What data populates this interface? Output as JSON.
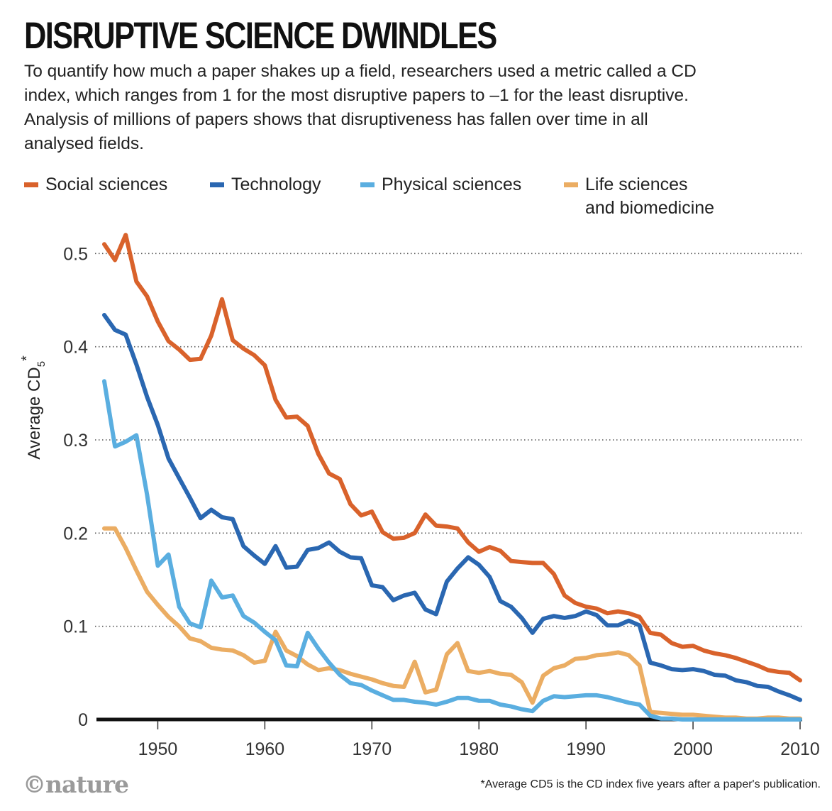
{
  "header": {
    "title": "DISRUPTIVE SCIENCE DWINDLES",
    "subtitle": "To quantify how much a paper shakes up a field, researchers used a metric called a CD index, which ranges from 1 for the most disruptive papers to –1 for the least disruptive. Analysis of millions of papers shows that disruptiveness has fallen over time in all analysed fields."
  },
  "legend": [
    {
      "label": "Social sciences",
      "color": "#d9622b"
    },
    {
      "label": "Technology",
      "color": "#2a67b1"
    },
    {
      "label": "Physical sciences",
      "color": "#5aaee0"
    },
    {
      "label": "Life sciences\nand biomedicine",
      "color": "#ebad63"
    }
  ],
  "footer": {
    "logo": "©nature",
    "footnote": "*Average CD5 is the CD index five years after a paper's publication."
  },
  "chart_data": {
    "type": "line",
    "ylabel": "Average CD5*",
    "xlabel": "",
    "xlim": [
      1945,
      2010
    ],
    "ylim": [
      0,
      0.52
    ],
    "xticks": [
      "1950",
      "1960",
      "1970",
      "1980",
      "1990",
      "2000",
      "2010"
    ],
    "yticks": [
      "0",
      "0.1",
      "0.2",
      "0.3",
      "0.4",
      "0.5"
    ],
    "grid": "horizontal dotted",
    "x": [
      1945,
      1946,
      1947,
      1948,
      1949,
      1950,
      1951,
      1952,
      1953,
      1954,
      1955,
      1956,
      1957,
      1958,
      1959,
      1960,
      1961,
      1962,
      1963,
      1964,
      1965,
      1966,
      1967,
      1968,
      1969,
      1970,
      1971,
      1972,
      1973,
      1974,
      1975,
      1976,
      1977,
      1978,
      1979,
      1980,
      1981,
      1982,
      1983,
      1984,
      1985,
      1986,
      1987,
      1988,
      1989,
      1990,
      1991,
      1992,
      1993,
      1994,
      1995,
      1996,
      1997,
      1998,
      1999,
      2000,
      2001,
      2002,
      2003,
      2004,
      2005,
      2006,
      2007,
      2008,
      2009,
      2010
    ],
    "series": [
      {
        "name": "Social sciences",
        "color": "#d9622b",
        "values": [
          0.51,
          0.493,
          0.52,
          0.47,
          0.454,
          0.427,
          0.406,
          0.397,
          0.386,
          0.387,
          0.412,
          0.451,
          0.407,
          0.398,
          0.391,
          0.38,
          0.343,
          0.324,
          0.325,
          0.315,
          0.285,
          0.264,
          0.258,
          0.231,
          0.219,
          0.223,
          0.201,
          0.194,
          0.195,
          0.2,
          0.22,
          0.208,
          0.207,
          0.205,
          0.19,
          0.18,
          0.185,
          0.181,
          0.17,
          0.169,
          0.168,
          0.168,
          0.156,
          0.133,
          0.125,
          0.121,
          0.119,
          0.114,
          0.116,
          0.114,
          0.11,
          0.093,
          0.091,
          0.082,
          0.078,
          0.079,
          0.074,
          0.071,
          0.069,
          0.066,
          0.062,
          0.058,
          0.053,
          0.051,
          0.05,
          0.042
        ]
      },
      {
        "name": "Technology",
        "color": "#2a67b1",
        "values": [
          0.434,
          0.418,
          0.413,
          0.381,
          0.346,
          0.316,
          0.28,
          0.259,
          0.238,
          0.216,
          0.225,
          0.217,
          0.215,
          0.186,
          0.176,
          0.167,
          0.186,
          0.163,
          0.164,
          0.182,
          0.184,
          0.19,
          0.18,
          0.174,
          0.173,
          0.144,
          0.142,
          0.128,
          0.133,
          0.136,
          0.118,
          0.113,
          0.148,
          0.162,
          0.174,
          0.166,
          0.153,
          0.127,
          0.121,
          0.109,
          0.093,
          0.108,
          0.111,
          0.109,
          0.111,
          0.116,
          0.112,
          0.101,
          0.101,
          0.106,
          0.101,
          0.061,
          0.058,
          0.054,
          0.053,
          0.054,
          0.052,
          0.048,
          0.047,
          0.042,
          0.04,
          0.036,
          0.035,
          0.03,
          0.026,
          0.021
        ]
      },
      {
        "name": "Physical sciences",
        "color": "#5aaee0",
        "values": [
          0.363,
          0.293,
          0.298,
          0.305,
          0.241,
          0.165,
          0.177,
          0.121,
          0.103,
          0.099,
          0.149,
          0.131,
          0.133,
          0.111,
          0.104,
          0.094,
          0.085,
          0.058,
          0.057,
          0.093,
          0.076,
          0.061,
          0.048,
          0.039,
          0.037,
          0.031,
          0.026,
          0.021,
          0.021,
          0.019,
          0.018,
          0.016,
          0.019,
          0.023,
          0.023,
          0.02,
          0.02,
          0.016,
          0.014,
          0.011,
          0.009,
          0.02,
          0.025,
          0.024,
          0.025,
          0.026,
          0.026,
          0.024,
          0.021,
          0.018,
          0.016,
          0.004,
          0.001,
          0.001,
          0.0,
          0.0,
          0.0,
          0.0,
          0.0,
          0.0,
          0.0,
          0.0,
          0.0,
          0.0,
          0.0,
          0.0
        ]
      },
      {
        "name": "Life sciences\nand biomedicine",
        "color": "#ebad63",
        "values": [
          0.205,
          0.205,
          0.184,
          0.16,
          0.137,
          0.123,
          0.11,
          0.1,
          0.087,
          0.084,
          0.077,
          0.075,
          0.074,
          0.069,
          0.061,
          0.063,
          0.094,
          0.074,
          0.068,
          0.059,
          0.053,
          0.055,
          0.053,
          0.049,
          0.046,
          0.043,
          0.039,
          0.036,
          0.035,
          0.062,
          0.029,
          0.032,
          0.07,
          0.082,
          0.052,
          0.05,
          0.052,
          0.049,
          0.048,
          0.04,
          0.018,
          0.047,
          0.055,
          0.058,
          0.065,
          0.066,
          0.069,
          0.07,
          0.072,
          0.069,
          0.058,
          0.008,
          0.007,
          0.006,
          0.005,
          0.005,
          0.004,
          0.003,
          0.002,
          0.002,
          0.001,
          0.001,
          0.002,
          0.002,
          0.001,
          0.001
        ]
      }
    ]
  }
}
